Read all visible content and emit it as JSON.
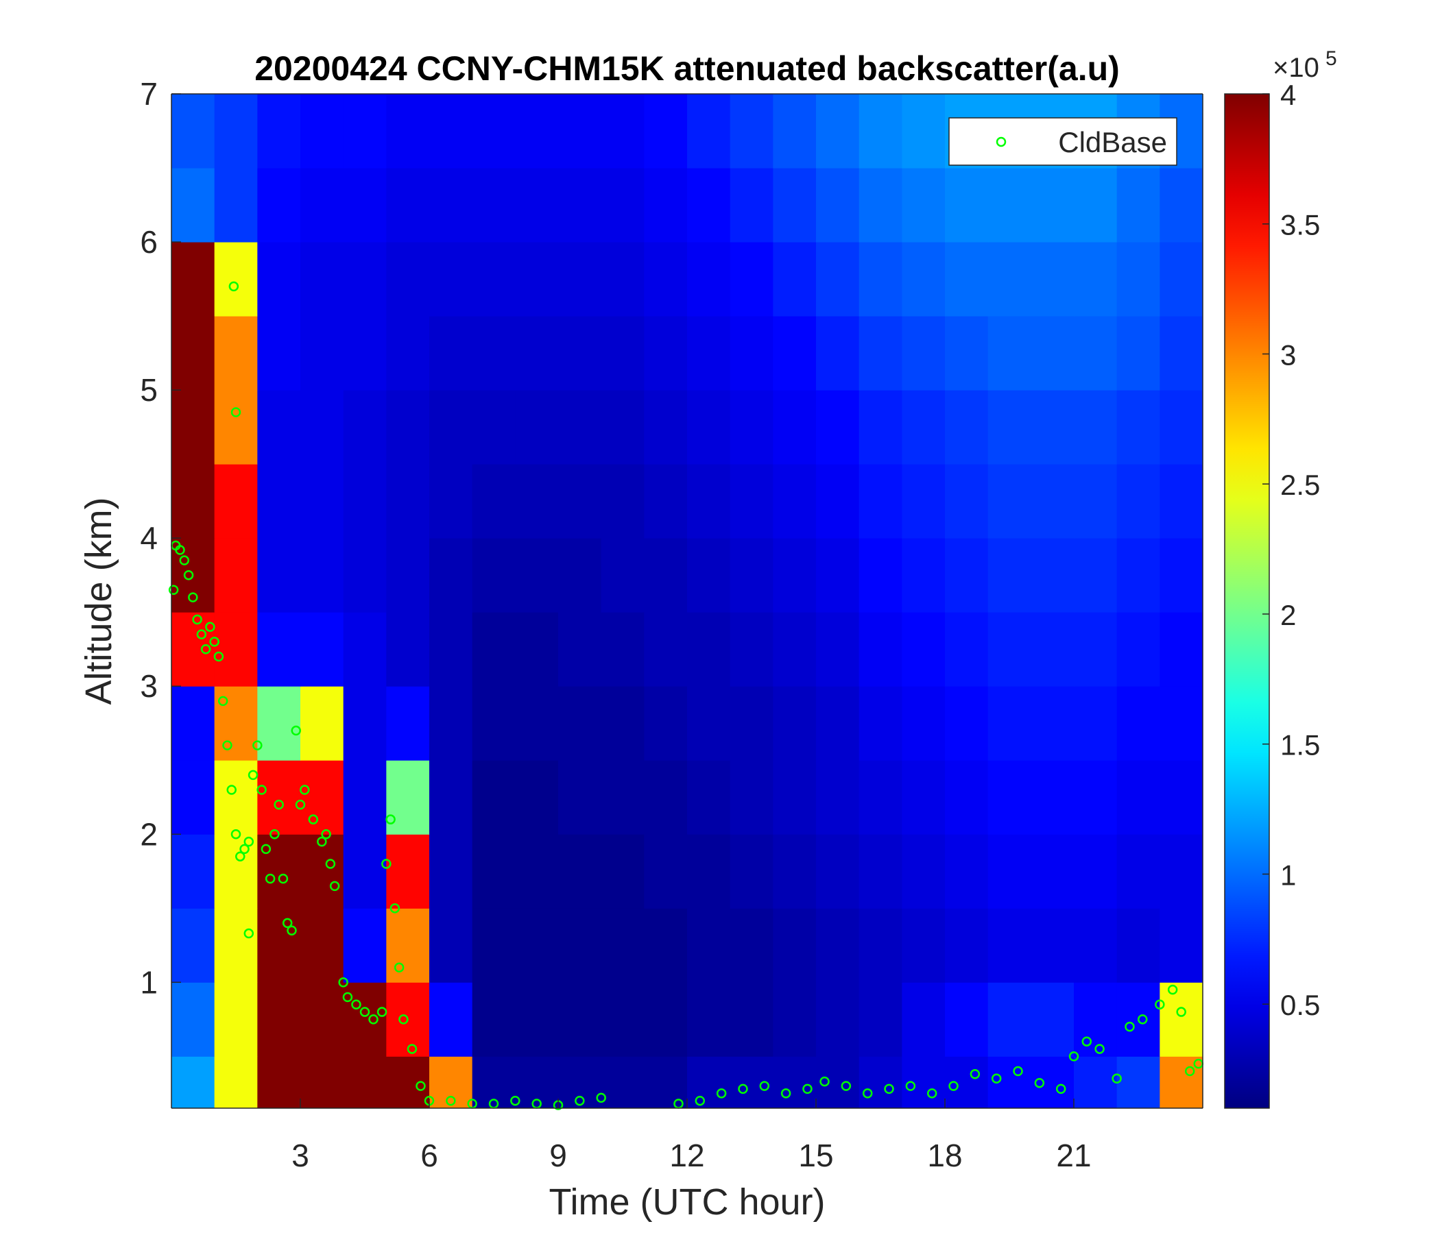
{
  "chart_data": {
    "type": "heatmap",
    "title": "20200424 CCNY-CHM15K attenuated backscatter(a.u)",
    "x_label": "Time (UTC hour)",
    "y_label": "Altitude (km)",
    "xlim": [
      0,
      24
    ],
    "xticks": [
      3,
      6,
      9,
      12,
      15,
      18,
      21
    ],
    "ylim": [
      0.15,
      7
    ],
    "yticks": [
      1,
      2,
      3,
      4,
      5,
      6,
      7
    ],
    "x_bins": [
      0,
      1,
      2,
      3,
      4,
      5,
      6,
      7,
      8,
      9,
      10,
      11,
      12,
      13,
      14,
      15,
      16,
      17,
      18,
      19,
      20,
      21,
      22,
      23,
      24
    ],
    "y_bins": [
      0.15,
      0.5,
      1,
      1.5,
      2,
      2.5,
      3,
      3.5,
      4,
      4.5,
      5,
      5.5,
      6,
      6.5,
      7
    ],
    "values": [
      [
        1.2,
        2.5,
        4,
        4,
        4,
        4,
        3.0,
        0.2,
        0.2,
        0.2,
        0.2,
        0.2,
        0.3,
        0.3,
        0.3,
        0.3,
        0.4,
        0.5,
        0.5,
        0.6,
        0.6,
        0.7,
        0.8,
        3.0
      ],
      [
        1.0,
        2.5,
        4,
        4,
        4,
        3.5,
        0.6,
        0.15,
        0.15,
        0.15,
        0.15,
        0.15,
        0.2,
        0.2,
        0.25,
        0.3,
        0.35,
        0.5,
        0.6,
        0.7,
        0.7,
        0.6,
        0.6,
        2.5
      ],
      [
        0.8,
        2.5,
        4,
        4,
        0.6,
        3.0,
        0.3,
        0.15,
        0.15,
        0.15,
        0.15,
        0.15,
        0.2,
        0.2,
        0.25,
        0.3,
        0.35,
        0.4,
        0.45,
        0.5,
        0.5,
        0.5,
        0.45,
        0.5
      ],
      [
        0.7,
        2.5,
        4,
        4,
        0.5,
        3.5,
        0.3,
        0.15,
        0.15,
        0.15,
        0.15,
        0.2,
        0.2,
        0.25,
        0.3,
        0.35,
        0.4,
        0.45,
        0.5,
        0.55,
        0.55,
        0.55,
        0.5,
        0.5
      ],
      [
        0.6,
        2.5,
        3.5,
        3.5,
        0.5,
        2.0,
        0.3,
        0.15,
        0.15,
        0.2,
        0.2,
        0.2,
        0.25,
        0.3,
        0.35,
        0.4,
        0.45,
        0.5,
        0.55,
        0.6,
        0.6,
        0.6,
        0.55,
        0.55
      ],
      [
        0.6,
        3.0,
        2.0,
        2.5,
        0.5,
        0.6,
        0.3,
        0.2,
        0.2,
        0.2,
        0.2,
        0.25,
        0.3,
        0.3,
        0.35,
        0.4,
        0.5,
        0.55,
        0.6,
        0.65,
        0.65,
        0.65,
        0.6,
        0.6
      ],
      [
        3.5,
        3.5,
        0.6,
        0.6,
        0.5,
        0.4,
        0.3,
        0.2,
        0.2,
        0.25,
        0.25,
        0.3,
        0.3,
        0.35,
        0.4,
        0.45,
        0.55,
        0.6,
        0.65,
        0.7,
        0.7,
        0.7,
        0.65,
        0.6
      ],
      [
        4,
        3.5,
        0.5,
        0.5,
        0.45,
        0.4,
        0.3,
        0.25,
        0.25,
        0.25,
        0.3,
        0.3,
        0.35,
        0.4,
        0.45,
        0.5,
        0.6,
        0.65,
        0.7,
        0.75,
        0.75,
        0.75,
        0.7,
        0.65
      ],
      [
        4,
        3.5,
        0.5,
        0.5,
        0.45,
        0.4,
        0.35,
        0.3,
        0.3,
        0.3,
        0.3,
        0.35,
        0.4,
        0.45,
        0.5,
        0.55,
        0.65,
        0.7,
        0.75,
        0.8,
        0.8,
        0.8,
        0.75,
        0.7
      ],
      [
        4,
        3.0,
        0.5,
        0.5,
        0.45,
        0.4,
        0.35,
        0.35,
        0.35,
        0.35,
        0.35,
        0.4,
        0.45,
        0.5,
        0.55,
        0.6,
        0.7,
        0.75,
        0.8,
        0.85,
        0.85,
        0.85,
        0.8,
        0.75
      ],
      [
        4,
        3.0,
        0.55,
        0.5,
        0.5,
        0.45,
        0.4,
        0.4,
        0.4,
        0.4,
        0.4,
        0.45,
        0.5,
        0.55,
        0.6,
        0.7,
        0.8,
        0.85,
        0.9,
        0.95,
        0.95,
        0.95,
        0.9,
        0.8
      ],
      [
        4,
        2.5,
        0.55,
        0.5,
        0.5,
        0.45,
        0.45,
        0.45,
        0.45,
        0.45,
        0.45,
        0.5,
        0.55,
        0.6,
        0.7,
        0.8,
        0.9,
        0.95,
        1.0,
        1.0,
        1.0,
        1.0,
        0.95,
        0.85
      ],
      [
        1.0,
        0.8,
        0.6,
        0.55,
        0.55,
        0.5,
        0.5,
        0.5,
        0.5,
        0.5,
        0.5,
        0.55,
        0.6,
        0.7,
        0.8,
        0.9,
        1.0,
        1.05,
        1.1,
        1.1,
        1.1,
        1.1,
        1.0,
        0.9
      ],
      [
        0.9,
        0.8,
        0.65,
        0.6,
        0.6,
        0.55,
        0.55,
        0.55,
        0.55,
        0.55,
        0.55,
        0.6,
        0.7,
        0.8,
        0.9,
        1.0,
        1.1,
        1.15,
        1.2,
        1.2,
        1.2,
        1.2,
        1.1,
        1.0
      ]
    ],
    "zlim": [
      0.1,
      4
    ],
    "zticks": [
      0.5,
      1,
      1.5,
      2,
      2.5,
      3,
      3.5,
      4
    ],
    "colorbar_scale": {
      "base": "×10",
      "exponent": "5"
    },
    "colormap": "jet",
    "legend_position": "upper right",
    "cloud_base": {
      "name": "CldBase",
      "color": "#00ff00",
      "x": [
        0.05,
        0.1,
        0.2,
        0.3,
        0.4,
        0.5,
        0.6,
        0.7,
        0.8,
        0.9,
        1.0,
        1.1,
        1.2,
        1.3,
        1.4,
        1.5,
        1.45,
        1.5,
        1.6,
        1.7,
        1.8,
        1.8,
        1.9,
        2.0,
        2.1,
        2.2,
        2.3,
        2.4,
        2.5,
        2.6,
        2.7,
        2.8,
        2.9,
        3.0,
        3.1,
        3.3,
        3.5,
        3.6,
        3.7,
        3.8,
        4.0,
        4.1,
        4.3,
        4.5,
        4.7,
        4.9,
        5.0,
        5.1,
        5.2,
        5.3,
        5.4,
        5.6,
        5.8,
        6.0,
        6.5,
        7.0,
        7.5,
        8.0,
        8.5,
        9.0,
        9.5,
        10.0,
        11.8,
        12.3,
        12.8,
        13.3,
        13.8,
        14.3,
        14.8,
        15.2,
        15.7,
        16.2,
        16.7,
        17.2,
        17.7,
        18.2,
        18.7,
        19.2,
        19.7,
        20.2,
        20.7,
        21.0,
        21.3,
        21.6,
        22.0,
        22.3,
        22.6,
        23.0,
        23.3,
        23.5,
        23.7,
        23.9
      ],
      "y": [
        3.65,
        3.95,
        3.92,
        3.85,
        3.75,
        3.6,
        3.45,
        3.35,
        3.25,
        3.4,
        3.3,
        3.2,
        2.9,
        2.6,
        2.3,
        2.0,
        5.7,
        4.85,
        1.85,
        1.9,
        1.95,
        1.33,
        2.4,
        2.6,
        2.3,
        1.9,
        1.7,
        2.0,
        2.2,
        1.7,
        1.4,
        1.35,
        2.7,
        2.2,
        2.3,
        2.1,
        1.95,
        2.0,
        1.8,
        1.65,
        1.0,
        0.9,
        0.85,
        0.8,
        0.75,
        0.8,
        1.8,
        2.1,
        1.5,
        1.1,
        0.75,
        0.55,
        0.3,
        0.2,
        0.2,
        0.18,
        0.18,
        0.2,
        0.18,
        0.17,
        0.2,
        0.22,
        0.18,
        0.2,
        0.25,
        0.28,
        0.3,
        0.25,
        0.28,
        0.33,
        0.3,
        0.25,
        0.28,
        0.3,
        0.25,
        0.3,
        0.38,
        0.35,
        0.4,
        0.32,
        0.28,
        0.5,
        0.6,
        0.55,
        0.35,
        0.7,
        0.75,
        0.85,
        0.95,
        0.8,
        0.4,
        0.45
      ]
    }
  }
}
